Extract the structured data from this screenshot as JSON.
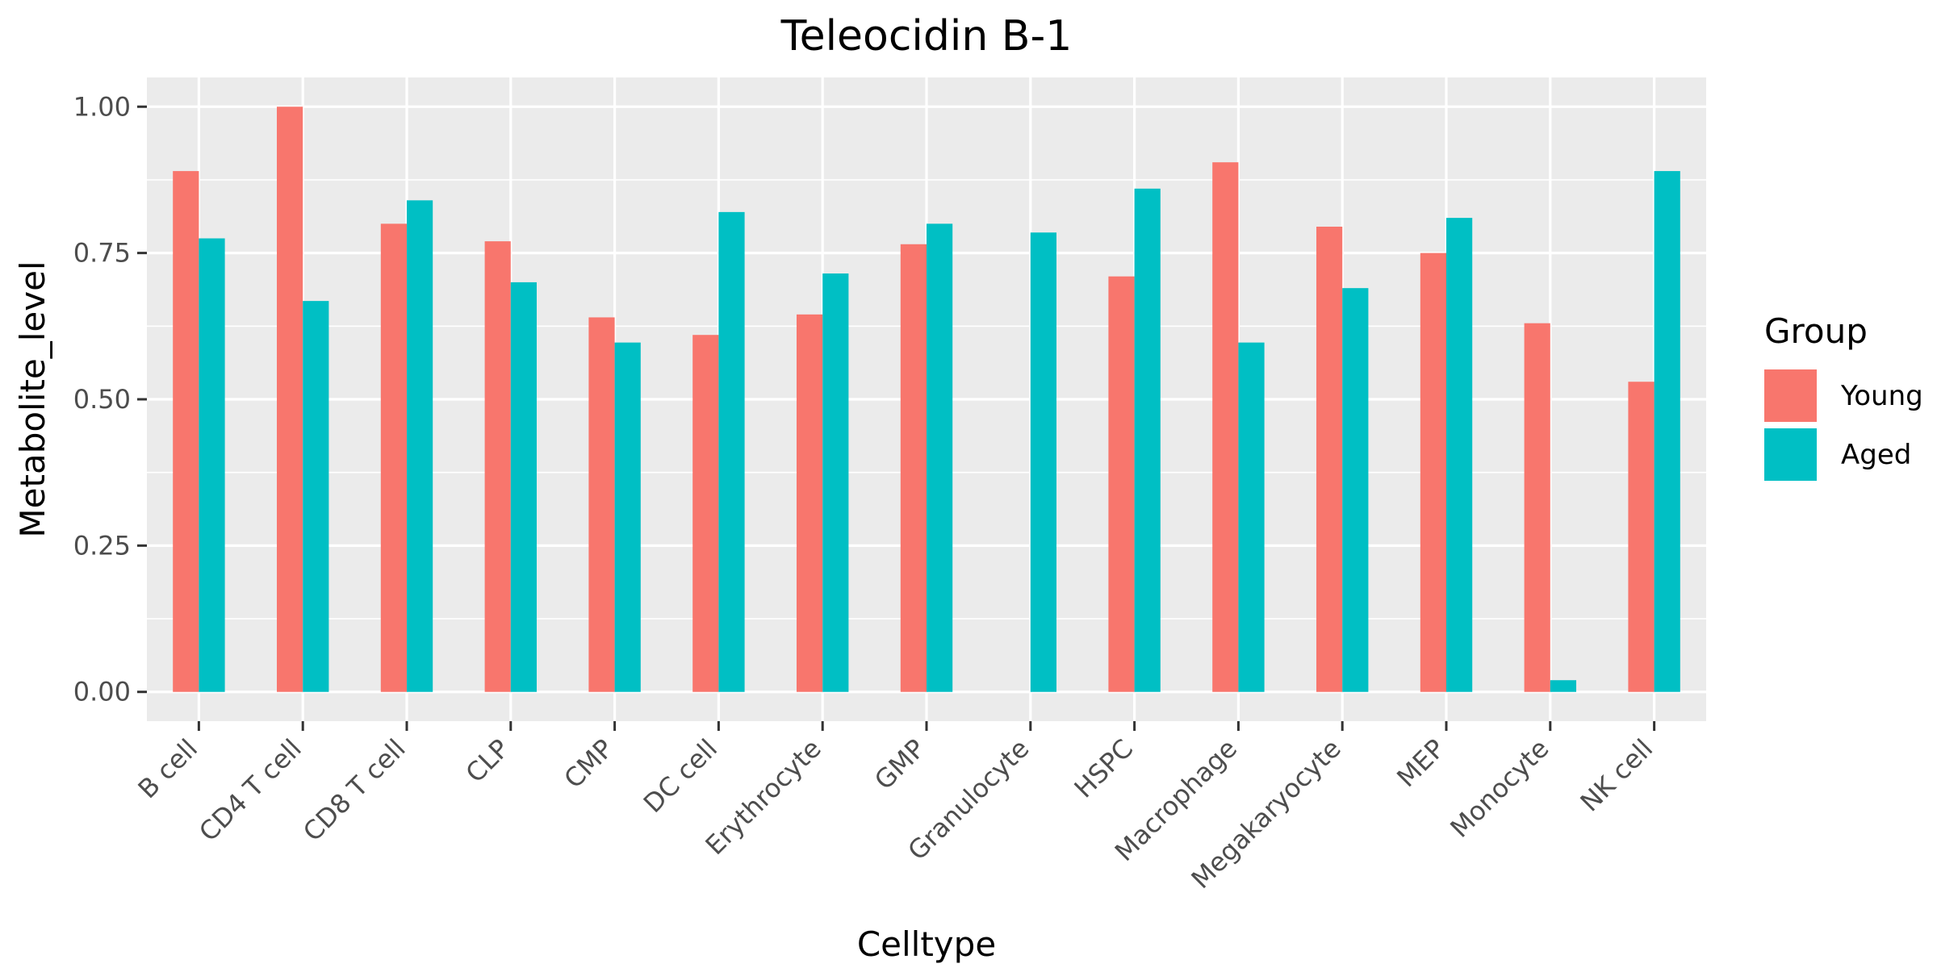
{
  "chart_data": {
    "type": "bar",
    "title": "Teleocidin B-1",
    "xlabel": "Celltype",
    "ylabel": "Metabolite_level",
    "categories": [
      "B cell",
      "CD4 T cell",
      "CD8 T cell",
      "CLP",
      "CMP",
      "DC cell",
      "Erythrocyte",
      "GMP",
      "Granulocyte",
      "HSPC",
      "Macrophage",
      "Megakaryocyte",
      "MEP",
      "Monocyte",
      "NK cell"
    ],
    "series": [
      {
        "name": "Young",
        "color": "#F8766D",
        "values": [
          0.89,
          1.0,
          0.8,
          0.77,
          0.64,
          0.61,
          0.645,
          0.765,
          0.0,
          0.71,
          0.905,
          0.795,
          0.75,
          0.63,
          0.53
        ]
      },
      {
        "name": "Aged",
        "color": "#00BFC4",
        "values": [
          0.775,
          0.668,
          0.84,
          0.7,
          0.597,
          0.82,
          0.715,
          0.8,
          0.785,
          0.86,
          0.597,
          0.69,
          0.81,
          0.02,
          0.89
        ]
      }
    ],
    "ylim": [
      -0.05,
      1.05
    ],
    "yticks": [
      0.0,
      0.25,
      0.5,
      0.75,
      1.0
    ],
    "ytick_labels": [
      "0.00",
      "0.25",
      "0.50",
      "0.75",
      "1.00"
    ],
    "grid": true,
    "legend": {
      "title": "Group",
      "position": "right"
    }
  }
}
